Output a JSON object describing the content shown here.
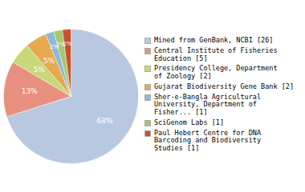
{
  "chart_data": {
    "type": "pie",
    "categories": [
      "Mined from GenBank, NCBI [26]",
      "Central Institute of Fisheries\nEducation [5]",
      "Presidency College, Department\nof Zoology [2]",
      "Gujarat Biodiversity Gene Bank [2]",
      "Sher-e-Bangla Agricultural\nUniversity, Department of\nFisher... [1]",
      "SciGenom Labs [1]",
      "Paul Hebert Centre for DNA\nBarcoding and Biodiversity\nStudies [1]"
    ],
    "values": [
      68,
      13,
      5,
      5,
      2,
      2,
      2
    ],
    "value_labels": [
      "68%",
      "13%",
      "5%",
      "5%",
      "2%",
      "2%",
      "2%"
    ],
    "colors": [
      "#b8c8e0",
      "#e89080",
      "#c8d878",
      "#e8a850",
      "#90b8d8",
      "#a8c870",
      "#c85030"
    ],
    "data_labels": true,
    "legend": "right"
  }
}
